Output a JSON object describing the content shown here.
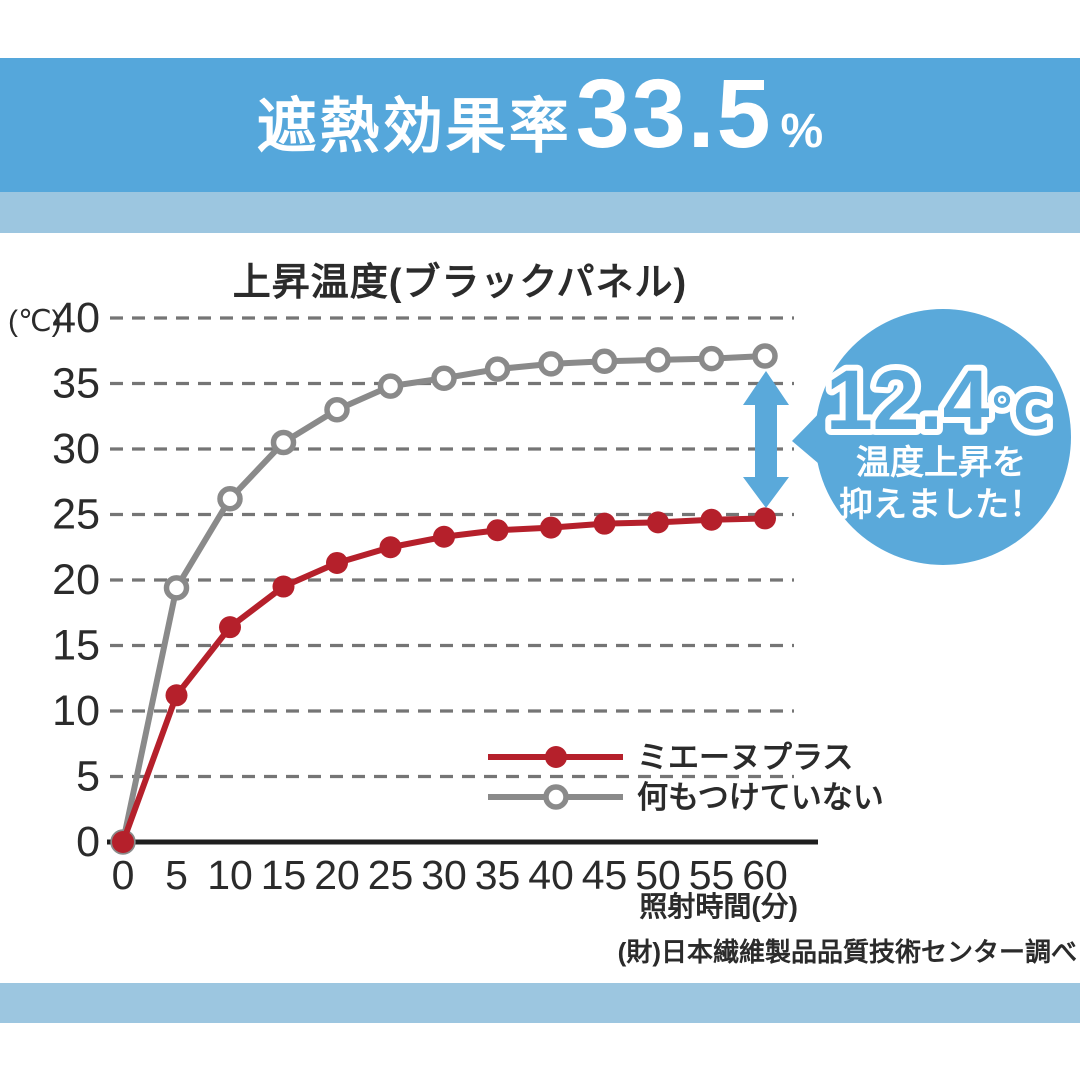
{
  "banner": {
    "title_kanji": "遮熱効果率",
    "value": "33.5",
    "unit": "%"
  },
  "chart": {
    "title": "上昇温度(ブラックパネル)",
    "y_unit_label": "(℃)",
    "x_axis_label": "照射時間(分)"
  },
  "chart_data": {
    "type": "line",
    "title": "上昇温度(ブラックパネル)",
    "xlabel": "照射時間(分)",
    "ylabel": "(℃)",
    "x": [
      0,
      5,
      10,
      15,
      20,
      25,
      30,
      35,
      40,
      45,
      50,
      55,
      60
    ],
    "x_ticks": [
      0,
      5,
      10,
      15,
      20,
      25,
      30,
      35,
      40,
      45,
      50,
      55,
      60
    ],
    "y_ticks": [
      0,
      5,
      10,
      15,
      20,
      25,
      30,
      35,
      40
    ],
    "ylim": [
      0,
      40
    ],
    "xlim": [
      0,
      60
    ],
    "grid": "horizontal-dashed",
    "legend_position": "inside-bottom-right",
    "series": [
      {
        "name": "何もつけていない",
        "marker": "open-circle",
        "color": "#8a8a8a",
        "values": [
          0,
          19.4,
          26.2,
          30.5,
          33.0,
          34.8,
          35.4,
          36.1,
          36.5,
          36.7,
          36.8,
          36.9,
          37.1
        ]
      },
      {
        "name": "ミエーヌプラス",
        "marker": "filled-circle",
        "color": "#b5202b",
        "values": [
          0,
          11.2,
          16.4,
          19.5,
          21.3,
          22.5,
          23.3,
          23.8,
          24.0,
          24.3,
          24.4,
          24.6,
          24.7
        ]
      }
    ],
    "annotation": {
      "difference_at_60min": "12.4",
      "difference_unit": "℃"
    }
  },
  "callout": {
    "value": "12.4",
    "unit": "℃",
    "line1": "温度上昇を",
    "line2": "抑えました！"
  },
  "source": "(財)日本繊維製品品質技術センター調べ",
  "colors": {
    "banner_blue": "#55a7db",
    "light_blue_band": "#9cc6e0",
    "bubble_blue": "#5aa9da",
    "arrow_blue": "#5aa9da",
    "series_red": "#b5202b",
    "series_gray": "#8a8a8a",
    "grid_gray": "#757575",
    "axis_black": "#1f1f1f",
    "text_dark": "#2b2b2b"
  }
}
